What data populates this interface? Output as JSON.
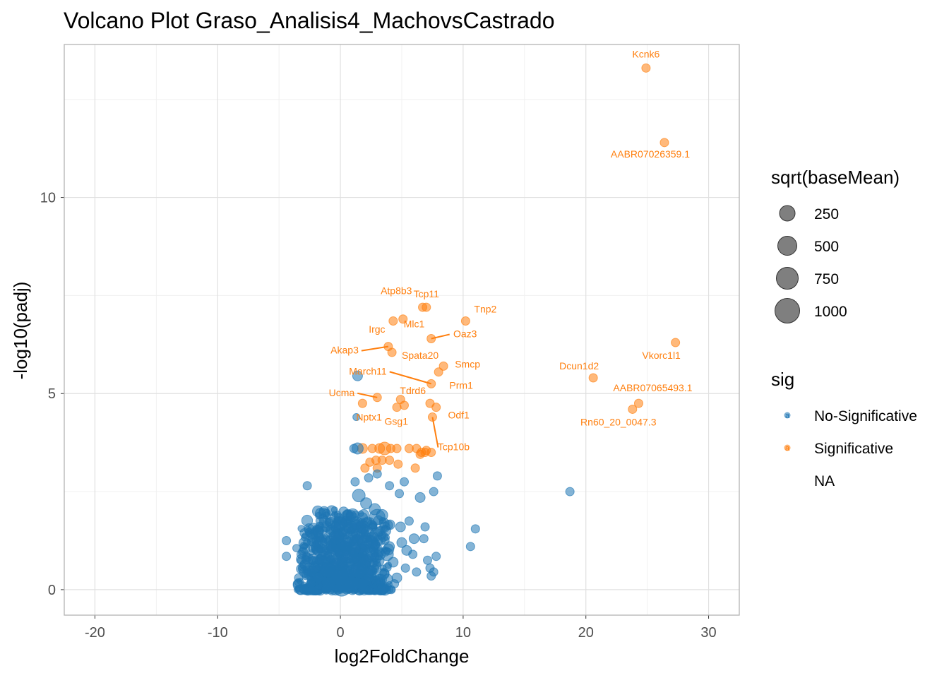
{
  "chart_data": {
    "type": "scatter",
    "title": "Volcano Plot Graso_Analisis4_MachovsCastrado",
    "xlabel": "log2FoldChange",
    "ylabel": "-log10(padj)",
    "xlim": [
      -22.5,
      32.5
    ],
    "ylim": [
      -0.65,
      13.9
    ],
    "x_ticks": [
      -20,
      -10,
      0,
      10,
      20,
      30
    ],
    "x_tick_labels": [
      "-20",
      "-10",
      "0",
      "10",
      "20",
      "30"
    ],
    "y_ticks": [
      0,
      5,
      10
    ],
    "y_tick_labels": [
      "0",
      "5",
      "10"
    ],
    "grid": true,
    "colors": {
      "no_sig": "#1f77b4",
      "sig": "#ff7f0e",
      "panel_border": "#b3b3b3",
      "grid": "#e0e0e0"
    },
    "legend": {
      "size_title": "sqrt(baseMean)",
      "size_entries": [
        "250",
        "500",
        "750",
        "1000"
      ],
      "color_title": "sig",
      "color_entries": [
        "No-Significative",
        "Significative",
        "NA"
      ],
      "key_glyph": "a"
    },
    "series": [
      {
        "name": "Significative",
        "points": [
          [
            24.9,
            13.3,
            6
          ],
          [
            26.4,
            11.4,
            6
          ],
          [
            27.3,
            6.3,
            6
          ],
          [
            20.6,
            5.4,
            6
          ],
          [
            24.3,
            4.75,
            6
          ],
          [
            23.8,
            4.6,
            6
          ],
          [
            6.7,
            7.2,
            6
          ],
          [
            7.0,
            7.2,
            6
          ],
          [
            10.2,
            6.85,
            6
          ],
          [
            4.3,
            6.85,
            6
          ],
          [
            5.1,
            6.9,
            6
          ],
          [
            7.4,
            6.4,
            6
          ],
          [
            3.9,
            6.2,
            6
          ],
          [
            4.2,
            6.05,
            6
          ],
          [
            8.4,
            5.7,
            6
          ],
          [
            8.0,
            5.55,
            6
          ],
          [
            7.4,
            5.25,
            6
          ],
          [
            3.0,
            4.9,
            6
          ],
          [
            1.8,
            4.75,
            6
          ],
          [
            4.9,
            4.85,
            6
          ],
          [
            5.2,
            4.7,
            6
          ],
          [
            4.6,
            4.65,
            6
          ],
          [
            7.3,
            4.75,
            6
          ],
          [
            7.8,
            4.65,
            6
          ],
          [
            7.5,
            4.4,
            6
          ],
          [
            1.8,
            3.6,
            7
          ],
          [
            2.6,
            3.6,
            6
          ],
          [
            3.2,
            3.6,
            7
          ],
          [
            3.6,
            3.6,
            9
          ],
          [
            4.1,
            3.6,
            6
          ],
          [
            4.6,
            3.6,
            6
          ],
          [
            5.6,
            3.6,
            6
          ],
          [
            6.2,
            3.6,
            6
          ],
          [
            6.6,
            3.5,
            6
          ],
          [
            7.0,
            3.55,
            6
          ],
          [
            7.4,
            3.5,
            6
          ],
          [
            6.5,
            3.45,
            6
          ],
          [
            2.4,
            3.25,
            6
          ],
          [
            2.9,
            3.3,
            6
          ],
          [
            3.4,
            3.3,
            6
          ],
          [
            4.0,
            3.3,
            6
          ],
          [
            2.0,
            3.1,
            6
          ],
          [
            3.0,
            3.1,
            6
          ],
          [
            4.7,
            3.2,
            6
          ],
          [
            6.1,
            3.1,
            6
          ],
          [
            6.9,
            3.5,
            6
          ]
        ]
      },
      {
        "name": "No-Significative",
        "points": [
          [
            1.4,
            5.45,
            7
          ],
          [
            1.3,
            4.4,
            5
          ],
          [
            1.4,
            3.6,
            8
          ],
          [
            1.1,
            3.6,
            6
          ],
          [
            18.7,
            2.5,
            6
          ],
          [
            11.0,
            1.55,
            6
          ],
          [
            10.6,
            1.1,
            6
          ],
          [
            -2.7,
            2.65,
            6
          ],
          [
            -2.2,
            1.55,
            8
          ],
          [
            -4.4,
            1.25,
            6
          ],
          [
            -4.4,
            0.85,
            6
          ],
          [
            -2.9,
            1.05,
            7
          ],
          [
            -3.2,
            0.9,
            6
          ],
          [
            -1.8,
            1.45,
            7
          ],
          [
            -2.1,
            0.55,
            7
          ],
          [
            -1.5,
            0.75,
            6
          ],
          [
            -1.8,
            0.3,
            7
          ],
          [
            -3.4,
            0.3,
            6
          ],
          [
            -3.5,
            0.15,
            6
          ],
          [
            -2.8,
            0.4,
            6
          ],
          [
            -2.4,
            0.15,
            6
          ],
          [
            -1.2,
            1.25,
            7
          ],
          [
            -0.8,
            0.85,
            8
          ],
          [
            -0.6,
            0.35,
            9
          ],
          [
            -0.2,
            1.15,
            9
          ],
          [
            0.2,
            0.95,
            11
          ],
          [
            0.5,
            0.6,
            12
          ],
          [
            0.8,
            1.3,
            10
          ],
          [
            1.0,
            0.45,
            10
          ],
          [
            1.3,
            1.7,
            9
          ],
          [
            1.5,
            2.4,
            9
          ],
          [
            1.7,
            1.0,
            9
          ],
          [
            2.0,
            0.7,
            8
          ],
          [
            2.2,
            1.45,
            9
          ],
          [
            2.5,
            0.45,
            8
          ],
          [
            2.8,
            2.05,
            8
          ],
          [
            3.0,
            1.85,
            11
          ],
          [
            3.2,
            0.9,
            8
          ],
          [
            3.5,
            0.4,
            8
          ],
          [
            3.7,
            1.5,
            7
          ],
          [
            4.0,
            1.1,
            7
          ],
          [
            4.3,
            0.7,
            7
          ],
          [
            4.6,
            0.3,
            7
          ],
          [
            4.8,
            2.45,
            6
          ],
          [
            5.0,
            1.2,
            7
          ],
          [
            5.3,
            0.55,
            6
          ],
          [
            5.6,
            1.75,
            6
          ],
          [
            5.9,
            0.9,
            6
          ],
          [
            6.2,
            0.45,
            6
          ],
          [
            6.5,
            2.35,
            7
          ],
          [
            6.8,
            1.3,
            6
          ],
          [
            7.1,
            0.75,
            6
          ],
          [
            7.4,
            0.35,
            6
          ],
          [
            7.6,
            2.5,
            6
          ],
          [
            7.9,
            2.9,
            6
          ],
          [
            7.8,
            0.85,
            6
          ],
          [
            7.3,
            0.55,
            6
          ],
          [
            5.2,
            2.75,
            6
          ],
          [
            4.0,
            2.65,
            6
          ],
          [
            3.0,
            2.95,
            6
          ],
          [
            2.3,
            2.85,
            6
          ],
          [
            1.2,
            2.75,
            6
          ],
          [
            0.6,
            1.9,
            7
          ],
          [
            -0.4,
            1.6,
            7
          ],
          [
            0.1,
            0.05,
            12
          ],
          [
            0.0,
            0.3,
            11
          ],
          [
            0.9,
            0.15,
            10
          ],
          [
            -0.9,
            0.15,
            9
          ],
          [
            0.4,
            1.45,
            9
          ],
          [
            1.1,
            1.05,
            9
          ],
          [
            2.6,
            1.2,
            8
          ],
          [
            3.3,
            0.25,
            8
          ],
          [
            6.9,
            1.6,
            6
          ],
          [
            7.6,
            0.45,
            6
          ],
          [
            4.4,
            0.15,
            6
          ],
          [
            -1.4,
            1.0,
            8
          ],
          [
            -0.2,
            0.7,
            12
          ],
          [
            0.6,
            0.9,
            12
          ],
          [
            1.5,
            0.5,
            11
          ],
          [
            2.0,
            1.2,
            10
          ],
          [
            -0.6,
            1.1,
            10
          ],
          [
            1.8,
            1.6,
            9
          ],
          [
            2.4,
            0.9,
            10
          ],
          [
            0.3,
            1.2,
            11
          ],
          [
            -1.0,
            0.5,
            10
          ],
          [
            2.9,
            1.4,
            9
          ],
          [
            3.8,
            0.9,
            9
          ],
          [
            1.0,
            1.9,
            9
          ],
          [
            0.0,
            1.7,
            9
          ],
          [
            -1.6,
            1.2,
            8
          ],
          [
            5.4,
            1.0,
            7
          ],
          [
            6.0,
            1.3,
            7
          ],
          [
            4.9,
            1.6,
            7
          ],
          [
            3.4,
            1.9,
            8
          ],
          [
            2.1,
            2.2,
            8
          ],
          [
            -0.3,
            1.35,
            10
          ]
        ]
      }
    ],
    "labels": [
      {
        "text": "Kcnk6",
        "x": 24.9,
        "y": 13.3
      },
      {
        "text": "AABR07026359.1",
        "x": 26.4,
        "y": 11.4
      },
      {
        "text": "Vkorc1l1",
        "x": 27.3,
        "y": 6.3
      },
      {
        "text": "Dcun1d2",
        "x": 20.6,
        "y": 5.4
      },
      {
        "text": "AABR07065493.1",
        "x": 24.3,
        "y": 4.75
      },
      {
        "text": "Rn60_20_0047.3",
        "x": 23.8,
        "y": 4.6
      },
      {
        "text": "Atp8b3",
        "x": 4.9,
        "y": 7.3
      },
      {
        "text": "Tcp11",
        "x": 7.0,
        "y": 7.2
      },
      {
        "text": "Tnp2",
        "x": 10.2,
        "y": 6.85
      },
      {
        "text": "Mlc1",
        "x": 6.7,
        "y": 6.65
      },
      {
        "text": "Oaz3",
        "x": 7.4,
        "y": 6.4
      },
      {
        "text": "Irgc",
        "x": 3.9,
        "y": 6.3
      },
      {
        "text": "Akap3",
        "x": 3.9,
        "y": 6.2
      },
      {
        "text": "Spata20",
        "x": 4.2,
        "y": 6.05
      },
      {
        "text": "Smcp",
        "x": 8.4,
        "y": 5.7
      },
      {
        "text": "March11",
        "x": 7.4,
        "y": 5.25
      },
      {
        "text": "Tdrd6",
        "x": 7.4,
        "y": 5.2
      },
      {
        "text": "Prm1",
        "x": 8.0,
        "y": 5.3
      },
      {
        "text": "Ucma",
        "x": 3.0,
        "y": 4.9
      },
      {
        "text": "Nptx1",
        "x": 1.3,
        "y": 4.4
      },
      {
        "text": "Gsg1",
        "x": 6.8,
        "y": 4.6
      },
      {
        "text": "Odf1",
        "x": 7.8,
        "y": 4.65
      },
      {
        "text": "Tcp10b",
        "x": 7.5,
        "y": 4.4
      }
    ]
  }
}
